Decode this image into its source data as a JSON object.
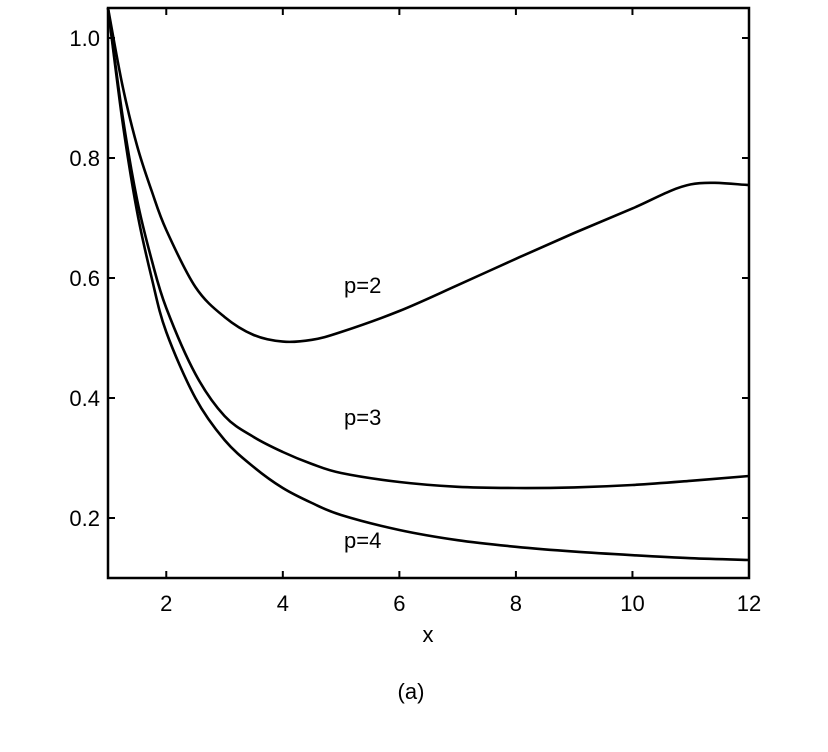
{
  "chart_data": {
    "type": "line",
    "xlabel": "x",
    "ylabel": "",
    "caption": "(a)",
    "xlim": [
      1,
      12
    ],
    "ylim": [
      0.1,
      1.05
    ],
    "xticks": [
      2,
      4,
      6,
      8,
      10,
      12
    ],
    "yticks": [
      0.2,
      0.4,
      0.6,
      0.8,
      1.0
    ],
    "xtick_labels": [
      "2",
      "4",
      "6",
      "8",
      "10",
      "12"
    ],
    "ytick_labels": [
      "0.2",
      "0.4",
      "0.6",
      "0.8",
      "1.0"
    ],
    "grid": false,
    "line_color": "#000000",
    "series": [
      {
        "name": "p=2",
        "label_at": [
          5.05,
          0.575
        ],
        "x": [
          1.0,
          1.25,
          1.5,
          1.75,
          2.0,
          2.5,
          3.0,
          3.5,
          4.0,
          4.5,
          5.0,
          6.0,
          7.0,
          8.0,
          9.0,
          10.0,
          11.0,
          12.0
        ],
        "y": [
          1.06,
          0.92,
          0.82,
          0.745,
          0.68,
          0.585,
          0.535,
          0.505,
          0.494,
          0.497,
          0.51,
          0.545,
          0.588,
          0.632,
          0.675,
          0.716,
          0.756,
          0.755
        ]
      },
      {
        "name": "p=3",
        "label_at": [
          5.05,
          0.355
        ],
        "x": [
          1.0,
          1.25,
          1.5,
          1.75,
          2.0,
          2.5,
          3.0,
          3.5,
          4.0,
          4.5,
          5.0,
          6.0,
          7.0,
          8.0,
          9.0,
          10.0,
          11.0,
          12.0
        ],
        "y": [
          1.06,
          0.87,
          0.73,
          0.63,
          0.55,
          0.44,
          0.37,
          0.335,
          0.31,
          0.29,
          0.275,
          0.26,
          0.252,
          0.25,
          0.251,
          0.255,
          0.262,
          0.27
        ]
      },
      {
        "name": "p=4",
        "label_at": [
          5.05,
          0.15
        ],
        "x": [
          1.0,
          1.25,
          1.5,
          1.75,
          2.0,
          2.5,
          3.0,
          3.5,
          4.0,
          4.5,
          5.0,
          6.0,
          7.0,
          8.0,
          9.0,
          10.0,
          11.0,
          12.0
        ],
        "y": [
          1.06,
          0.86,
          0.71,
          0.6,
          0.51,
          0.4,
          0.33,
          0.285,
          0.25,
          0.225,
          0.205,
          0.18,
          0.163,
          0.152,
          0.144,
          0.138,
          0.133,
          0.13
        ]
      }
    ]
  }
}
